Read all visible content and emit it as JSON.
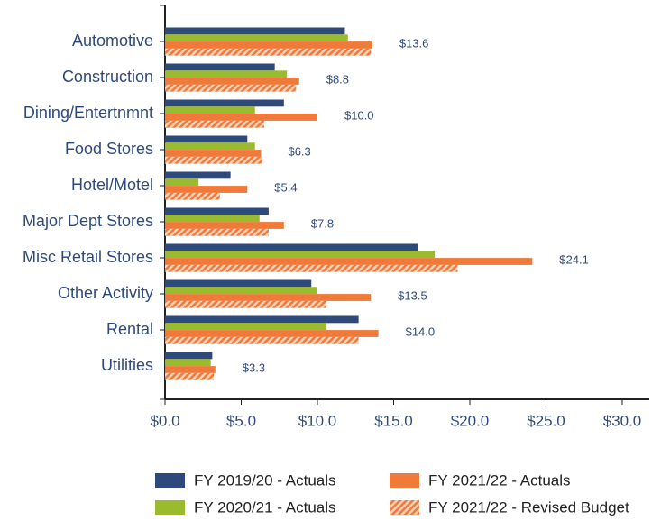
{
  "chart_data": {
    "type": "hbar",
    "categories": [
      "Automotive",
      "Construction",
      "Dining/Entertnmnt",
      "Food Stores",
      "Hotel/Motel",
      "Major Dept Stores",
      "Misc Retail Stores",
      "Other Activity",
      "Rental",
      "Utilities"
    ],
    "series": [
      {
        "name": "FY 2019/20 - Actuals",
        "color": "#2e4a7d",
        "values": [
          11.8,
          7.2,
          7.8,
          5.4,
          4.3,
          6.8,
          16.6,
          9.6,
          12.7,
          3.1
        ]
      },
      {
        "name": "FY 2020/21 - Actuals",
        "color": "#9bbb2f",
        "values": [
          12.0,
          8.0,
          5.9,
          5.9,
          2.2,
          6.2,
          17.7,
          10.0,
          10.6,
          3.0
        ]
      },
      {
        "name": "FY 2021/22 - Actuals",
        "color": "#f07a3a",
        "values": [
          13.6,
          8.8,
          10.0,
          6.3,
          5.4,
          7.8,
          24.1,
          13.5,
          14.0,
          3.3
        ],
        "value_labels": [
          "$13.6",
          "$8.8",
          "$10.0",
          "$6.3",
          "$5.4",
          "$7.8",
          "$24.1",
          "$13.5",
          "$14.0",
          "$3.3"
        ]
      },
      {
        "name": "FY 2021/22 - Revised Budget",
        "color": "#f07a3a",
        "pattern": "hatch",
        "values": [
          13.5,
          8.6,
          6.5,
          6.4,
          3.6,
          6.8,
          19.2,
          10.6,
          12.7,
          3.2
        ]
      }
    ],
    "xlim": [
      0,
      30
    ],
    "xticks": [
      {
        "value": 0,
        "label": "$0.0"
      },
      {
        "value": 5,
        "label": "$5.0"
      },
      {
        "value": 10,
        "label": "$10.0"
      },
      {
        "value": 15,
        "label": "$15.0"
      },
      {
        "value": 20,
        "label": "$20.0"
      },
      {
        "value": 25,
        "label": "$25.0"
      },
      {
        "value": 30,
        "label": "$30.0"
      }
    ],
    "grid": false
  }
}
